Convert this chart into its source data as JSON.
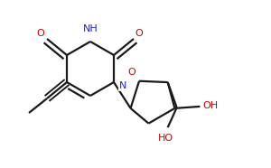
{
  "bg_color": "#ffffff",
  "bond_color": "#1a1a1a",
  "nitrogen_color": "#2222cc",
  "oxygen_color": "#cc0000",
  "line_width": 1.6,
  "dbo": 0.055,
  "xlim": [
    0,
    3.0
  ],
  "ylim": [
    0,
    1.86
  ],
  "fontsize": 7.5
}
